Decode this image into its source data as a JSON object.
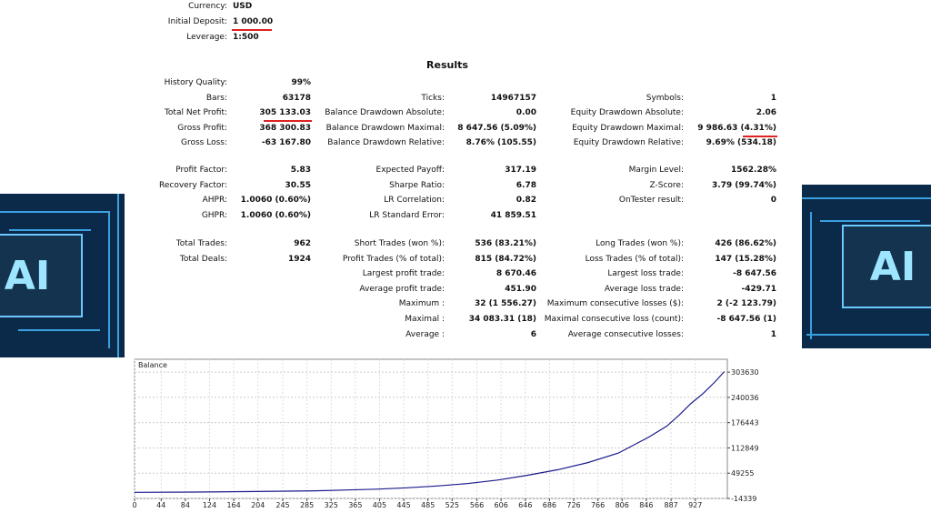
{
  "header": {
    "rows": [
      {
        "label": "Currency:",
        "value": "USD"
      },
      {
        "label": "Initial Deposit:",
        "value": "1 000.00"
      },
      {
        "label": "Leverage:",
        "value": "1:500"
      }
    ]
  },
  "results": {
    "title": "Results",
    "sections": [
      [
        [
          "History Quality:",
          "99%",
          null,
          null,
          null,
          null
        ],
        [
          "Bars:",
          "63178",
          "Ticks:",
          "14967157",
          "Symbols:",
          "1"
        ],
        [
          "Total Net Profit:",
          "305 133.03",
          "Balance Drawdown Absolute:",
          "0.00",
          "Equity Drawdown Absolute:",
          "2.06"
        ],
        [
          "Gross Profit:",
          "368 300.83",
          "Balance Drawdown Maximal:",
          "8 647.56 (5.09%)",
          "Equity Drawdown Maximal:",
          "9 986.63 (4.31%)"
        ],
        [
          "Gross Loss:",
          "-63 167.80",
          "Balance Drawdown Relative:",
          "8.76% (105.55)",
          "Equity Drawdown Relative:",
          "9.69% (534.18)"
        ]
      ],
      [
        [
          "Profit Factor:",
          "5.83",
          "Expected Payoff:",
          "317.19",
          "Margin Level:",
          "1562.28%"
        ],
        [
          "Recovery Factor:",
          "30.55",
          "Sharpe Ratio:",
          "6.78",
          "Z-Score:",
          "3.79 (99.74%)"
        ],
        [
          "AHPR:",
          "1.0060 (0.60%)",
          "LR Correlation:",
          "0.82",
          "OnTester result:",
          "0"
        ],
        [
          "GHPR:",
          "1.0060 (0.60%)",
          "LR Standard Error:",
          "41 859.51",
          null,
          null
        ]
      ],
      [
        [
          "Total Trades:",
          "962",
          "Short Trades (won %):",
          "536 (83.21%)",
          "Long Trades (won %):",
          "426 (86.62%)"
        ],
        [
          "Total Deals:",
          "1924",
          "Profit Trades (% of total):",
          "815 (84.72%)",
          "Loss Trades (% of total):",
          "147 (15.28%)"
        ],
        [
          null,
          null,
          "Largest profit trade:",
          "8 670.46",
          "Largest loss trade:",
          "-8 647.56"
        ],
        [
          null,
          null,
          "Average profit trade:",
          "451.90",
          "Average loss trade:",
          "-429.71"
        ],
        [
          null,
          null,
          "Maximum :",
          "32 (1 556.27)",
          "Maximum consecutive losses ($):",
          "2 (-2 123.79)"
        ],
        [
          null,
          null,
          "Maximal :",
          "34 083.31 (18)",
          "Maximal consecutive loss (count):",
          "-8 647.56 (1)"
        ],
        [
          null,
          null,
          "Average :",
          "6",
          "Average consecutive losses:",
          "1"
        ]
      ]
    ]
  },
  "images": {
    "left_text": "AI",
    "right_text": "AI"
  },
  "chart_data": {
    "type": "line",
    "x": [
      0,
      100,
      200,
      300,
      400,
      450,
      500,
      550,
      600,
      650,
      700,
      750,
      800,
      850,
      880,
      900,
      920,
      940,
      960,
      975
    ],
    "series": [
      {
        "name": "Balance",
        "color": "#1a1a8c",
        "values": [
          1000,
          1800,
          3000,
          5000,
          9000,
          12500,
          17000,
          23000,
          32000,
          44000,
          58000,
          76000,
          100000,
          140000,
          168000,
          195000,
          225000,
          250000,
          280000,
          305133
        ]
      }
    ],
    "xlim": [
      0,
      980
    ],
    "ylim": [
      -14339,
      336000
    ],
    "xticks": [
      0,
      44,
      84,
      124,
      164,
      204,
      245,
      285,
      325,
      365,
      405,
      445,
      485,
      525,
      566,
      606,
      646,
      686,
      726,
      766,
      806,
      846,
      887,
      927
    ],
    "yticks": [
      303630,
      240036,
      176443,
      112849,
      49255,
      -14339
    ],
    "grid": true
  }
}
